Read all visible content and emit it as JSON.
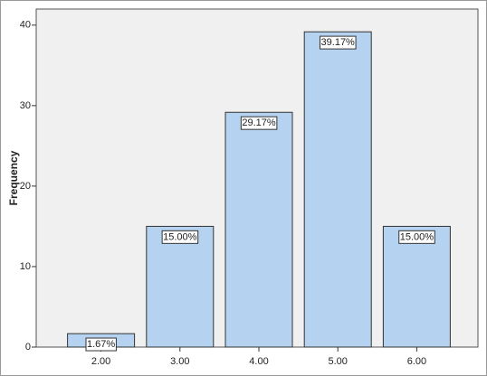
{
  "chart_data": {
    "type": "bar",
    "y_label": "Frequency",
    "categories": [
      "2.00",
      "3.00",
      "4.00",
      "5.00",
      "6.00"
    ],
    "values": [
      1.67,
      15,
      29.17,
      39.17,
      15
    ],
    "value_labels": [
      "1.67%",
      "15.00%",
      "29.17%",
      "39.17%",
      "15.00%"
    ],
    "color": "#b5d3f0",
    "ylim": [
      0,
      42
    ],
    "yticks": [
      0,
      10,
      20,
      30,
      40
    ]
  }
}
